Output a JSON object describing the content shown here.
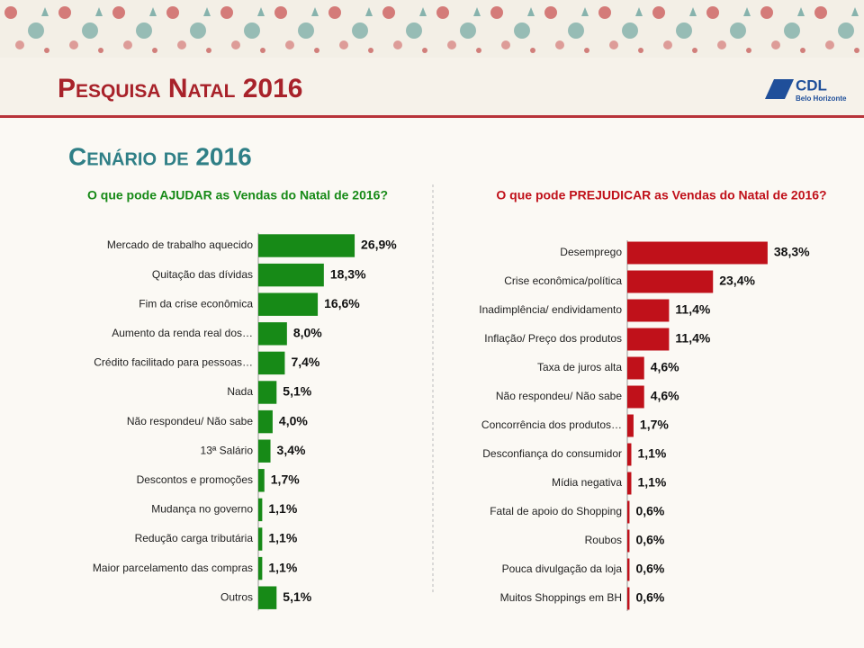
{
  "header": {
    "title": "Pesquisa Natal 2016",
    "subtitle": "Cenário de 2016",
    "logo": "CDL",
    "logo_sub": "Belo Horizonte"
  },
  "chart_data": [
    {
      "type": "hbar",
      "title": "O que pode AJUDAR as Vendas do Natal de 2016?",
      "color": "#178a17",
      "categories": [
        "Mercado de trabalho aquecido",
        "Quitação das dívidas",
        "Fim da crise econômica",
        "Aumento da renda real dos…",
        "Crédito facilitado para pessoas…",
        "Nada",
        "Não respondeu/ Não sabe",
        "13ª Salário",
        "Descontos e promoções",
        "Mudança no governo",
        "Redução carga tributária",
        "Maior parcelamento das compras",
        "Outros"
      ],
      "values": [
        26.9,
        18.3,
        16.6,
        8.0,
        7.4,
        5.1,
        4.0,
        3.4,
        1.7,
        1.1,
        1.1,
        1.1,
        5.1
      ],
      "value_labels": [
        "26,9%",
        "18,3%",
        "16,6%",
        "8,0%",
        "7,4%",
        "5,1%",
        "4,0%",
        "3,4%",
        "1,7%",
        "1,1%",
        "1,1%",
        "1,1%",
        "5,1%"
      ]
    },
    {
      "type": "hbar",
      "title": "O que pode PREJUDICAR as Vendas do Natal de 2016?",
      "color": "#c0111a",
      "categories": [
        "Desemprego",
        "Crise econômica/política",
        "Inadimplência/ endividamento",
        "Inflação/ Preço dos produtos",
        "Taxa de juros alta",
        "Não respondeu/ Não sabe",
        "Concorrência dos produtos…",
        "Desconfiança do consumidor",
        "Mídia negativa",
        "Fatal de apoio do Shopping",
        "Roubos",
        "Pouca divulgação da loja",
        "Muitos Shoppings em BH"
      ],
      "values": [
        38.3,
        23.4,
        11.4,
        11.4,
        4.6,
        4.6,
        1.7,
        1.1,
        1.1,
        0.6,
        0.6,
        0.6,
        0.6
      ],
      "value_labels": [
        "38,3%",
        "23,4%",
        "11,4%",
        "11,4%",
        "4,6%",
        "4,6%",
        "1,7%",
        "1,1%",
        "1,1%",
        "0,6%",
        "0,6%",
        "0,6%",
        "0,6%"
      ]
    }
  ]
}
